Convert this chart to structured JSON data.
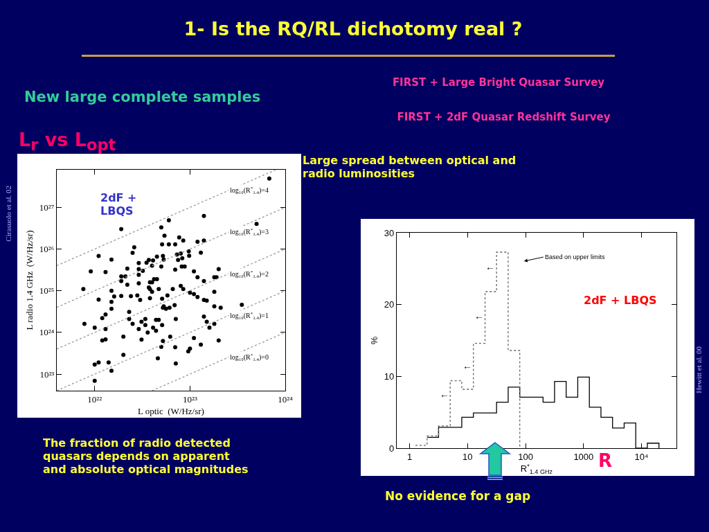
{
  "chart_data": [
    {
      "type": "other",
      "title": "1- Is the RQ/RL dichotomy real ?",
      "annotations": [
        "New large complete samples",
        "FIRST + Large Bright Quasar Survey",
        "FIRST + 2dF Quasar Redshift Survey",
        "Large spread between optical and radio luminosities",
        "The fraction of radio detected quasars depends on apparent and absolute optical magnitudes",
        "No evidence for a gap"
      ]
    },
    {
      "type": "scatter",
      "title": "L$_{r}$ vs L$_{opt}$",
      "xlabel": "L optic  (W/Hz/sr)",
      "ylabel": "L radio 1.4 GHz  (W/Hz/sr)",
      "log": "xy",
      "xlim": [
        4e+21,
        1e+24
      ],
      "ylim": [
        4e+22,
        8e+27
      ],
      "xticks": [
        {
          "value": 1e+22,
          "label": "10²²"
        },
        {
          "value": 1e+23,
          "label": "10²³"
        },
        {
          "value": 1e+24,
          "label": "10²⁴"
        }
      ],
      "yticks": [
        {
          "value": 1e+23,
          "label": "10²³"
        },
        {
          "value": 1e+24,
          "label": "10²⁴"
        },
        {
          "value": 1e+25,
          "label": "10²⁵"
        },
        {
          "value": 1e+26,
          "label": "10²⁶"
        },
        {
          "value": 1e+27,
          "label": "10²⁷"
        }
      ],
      "marker": "circle",
      "grid": false,
      "series": [
        {
          "color": "#000000",
          "x": [
            6.8e+23,
            1.4e+23,
            5e+23,
            1.9e+22,
            6e+22,
            5e+22,
            5.4e+22,
            7.7e+22,
            8.5e+22,
            1.2e+23,
            1.4e+23,
            5.1e+22,
            6e+22,
            7e+22,
            2.6e+22,
            2.5e+22,
            1.3e+23,
            9.7e+22,
            9.8e+22,
            7.3e+22,
            8e+22,
            1.1e+22,
            4.5e+22,
            5.2e+22,
            5.3e+22,
            7.5e+22,
            8.3e+22,
            1.5e+22,
            3.7e+22,
            4.1e+22,
            2.9e+22,
            3.5e+22,
            4e+22,
            5e+22,
            8.2e+22,
            8.8e+22,
            7e+22,
            2.2e+22,
            2.9e+22,
            3.2e+22,
            9.1e+21,
            1.3e+22,
            1.1e+23,
            2e+23,
            2.9e+22,
            1.9e+22,
            2.1e+22,
            1.2e+23,
            1.8e+23,
            1.9e+23,
            4.2e+22,
            4.5e+22,
            1.9e+22,
            1.4e+23,
            2.2e+22,
            2.9e+22,
            3.8e+22,
            4e+22,
            8e+22,
            7.6e+21,
            1.5e+22,
            3.7e+22,
            3.8e+22,
            4.7e+22,
            6.6e+22,
            4e+22,
            8.5e+22,
            1e+23,
            1.1e+23,
            1.8e+23,
            1.2e+23,
            1.9e+22,
            1.6e+22,
            2.4e+22,
            2.8e+22,
            3e+22,
            3.8e+22,
            5.8e+22,
            5.1e+22,
            1.1e+22,
            1.4e+23,
            1.5e+23,
            1.5e+22,
            5.3e+22,
            5.6e+22,
            6.1e+22,
            5.2e+22,
            6.9e+22,
            1.5e+22,
            1.8e+23,
            2.1e+23,
            3.5e+23,
            2.3e+22,
            1.3e+22,
            1.2e+22,
            7.8e+21,
            2.3e+22,
            3.4e+22,
            4.4e+22,
            4.7e+22,
            3.1e+22,
            5.1e+22,
            2.5e+22,
            3.4e+22,
            7.1e+22,
            1.4e+23,
            1.5e+23,
            1.8e+23,
            1.6e+23,
            1e+22,
            1.3e+22,
            2.9e+22,
            4.1e+22,
            3.6e+22,
            4.4e+22,
            2e+22,
            6.2e+22,
            1.2e+22,
            1.3e+22,
            3.1e+22,
            5.2e+22,
            1.1e+23,
            2e+23,
            1.3e+23,
            5e+22,
            7e+22,
            1e+23,
            9.6e+22,
            2e+22,
            4.6e+22,
            1.4e+22,
            1.1e+22,
            1e+22,
            7.1e+22,
            1.5e+22,
            1e+22
          ],
          "values": [
            4.9e+27,
            6.2e+26,
            4e+26,
            3e+26,
            4.9e+26,
            3.3e+26,
            2.1e+26,
            1.9e+26,
            1.6e+26,
            1.5e+26,
            1.6e+26,
            1.3e+26,
            1.3e+26,
            1.3e+26,
            1.1e+26,
            8.1e+25,
            8.2e+25,
            8.8e+25,
            6.9e+25,
            7.4e+25,
            7.8e+25,
            6.8e+25,
            6.6e+25,
            6.8e+25,
            5.6e+25,
            5.5e+25,
            6e+25,
            5.6e+25,
            5.5e+25,
            5.3e+25,
            4.6e+25,
            4.7e+25,
            4e+25,
            3.8e+25,
            3.8e+25,
            3.8e+25,
            3.2e+25,
            3.4e+25,
            3.3e+25,
            3e+25,
            2.9e+25,
            2.8e+25,
            2.9e+25,
            3.3e+25,
            2.4e+25,
            2.2e+25,
            2.2e+25,
            2.1e+25,
            2.1e+25,
            2.1e+25,
            1.9e+25,
            1.9e+25,
            1.7e+25,
            1.7e+25,
            1.4e+25,
            1.5e+25,
            1.6e+25,
            1.6e+25,
            1.3e+25,
            1.1e+25,
            1e+25,
            1.2e+25,
            1.1e+25,
            1.1e+25,
            1.1e+25,
            9.4e+24,
            1.1e+25,
            9e+24,
            8.3e+24,
            9.4e+24,
            7.1e+24,
            7.5e+24,
            7.3e+24,
            7.4e+24,
            7.7e+24,
            6e+24,
            6.6e+24,
            7.7e+24,
            6.4e+24,
            6.1e+24,
            6e+24,
            5.8e+24,
            5.4e+24,
            4.2e+24,
            3.7e+24,
            3.9e+24,
            3.9e+24,
            4.5e+24,
            3.7e+24,
            4.2e+24,
            3.9e+24,
            4.6e+24,
            3.1e+24,
            2.7e+24,
            2.2e+24,
            1.6e+24,
            2.1e+24,
            2.1e+24,
            2e+24,
            2e+24,
            1.8e+24,
            1.5e+24,
            1.6e+24,
            1.5e+24,
            2.1e+24,
            2.4e+24,
            1.8e+24,
            1.6e+24,
            1.3e+24,
            1.3e+24,
            1.2e+24,
            1.2e+24,
            1.3e+24,
            1e+24,
            1.1e+24,
            7.9e+23,
            7.9e+23,
            6.4e+23,
            6.8e+23,
            6.7e+23,
            6.2e+23,
            7.3e+23,
            6.4e+23,
            5.1e+23,
            4.5e+23,
            4.4e+23,
            4.1e+23,
            3.5e+23,
            2.9e+23,
            2.4e+23,
            1.9e+23,
            1.9e+23,
            1.7e+23,
            1.8e+23,
            1.2e+23,
            6.9e+22
          ]
        },
        {
          "type": "line",
          "name": "log₁₀(R$^{*}$$_{1.4}$)=4",
          "marker": "none",
          "line_style": "dotted",
          "color": "#999999",
          "x": [
            4e+21,
            8e+23
          ],
          "values": [
            4e+25,
            8e+27
          ]
        },
        {
          "type": "line",
          "name": "log₁₀(R$^{*}$$_{1.4}$)=3",
          "marker": "none",
          "line_style": "dotted",
          "color": "#999999",
          "x": [
            4e+21,
            1e+24
          ],
          "values": [
            4e+24,
            1e+27
          ]
        },
        {
          "type": "line",
          "name": "log₁₀(R$^{*}$$_{1.4}$)=2",
          "marker": "none",
          "line_style": "dotted",
          "color": "#999999",
          "x": [
            4e+21,
            1e+24
          ],
          "values": [
            4e+23,
            1e+26
          ]
        },
        {
          "type": "line",
          "name": "log₁₀(R$^{*}$$_{1.4}$)=1",
          "marker": "none",
          "line_style": "dotted",
          "color": "#999999",
          "x": [
            4e+21,
            1e+24
          ],
          "values": [
            4e+22,
            1e+25
          ]
        },
        {
          "type": "line",
          "name": "log₁₀(R$^{*}$$_{1.4}$)=0",
          "marker": "none",
          "line_style": "dotted",
          "color": "#999999",
          "x": [
            4e+22,
            1e+24
          ],
          "values": [
            4e+22,
            1e+24
          ]
        }
      ],
      "annotations": [
        "2dF + LBQS",
        "Cirasuolo et al. 02"
      ]
    },
    {
      "type": "step",
      "xlabel": "R$^{*}$$_{1.4 GHz}$",
      "ylabel": "%",
      "log": "x",
      "xlim": [
        0.6,
        40000
      ],
      "ylim": [
        0,
        30
      ],
      "xticks": [
        1,
        10,
        100,
        1000,
        {
          "value": 10000,
          "label": "10⁴"
        }
      ],
      "yticks": [
        0,
        10,
        20,
        30
      ],
      "grid": false,
      "series": [
        {
          "color": "#000000",
          "line_style": "solid",
          "x": [
            2,
            3.16,
            5.01,
            7.94,
            12.6,
            20,
            31.6,
            50.1,
            79.4,
            126,
            200,
            316,
            501,
            794,
            1259,
            1995,
            3162,
            5012,
            7943,
            12589,
            19953
          ],
          "values": [
            1.5,
            2.9,
            2.9,
            4.3,
            4.9,
            4.9,
            6.4,
            8.5,
            7.1,
            7.1,
            6.4,
            9.3,
            7.1,
            9.9,
            5.7,
            4.3,
            2.8,
            3.5,
            0,
            0.7,
            0
          ]
        },
        {
          "color": "#666666",
          "line_style": "dotted",
          "x": [
            1.26,
            2,
            3.16,
            5.01,
            7.94,
            12.6,
            20,
            31.6,
            50.1,
            79.4
          ],
          "values": [
            0.4,
            1.7,
            3.1,
            9.4,
            8.2,
            14.6,
            21.8,
            27.3,
            13.6,
            0
          ]
        }
      ],
      "annotations": [
        "2dF + LBQS",
        "R",
        "Hewitt et al. 00",
        "Based on upper limits",
        "←",
        "←",
        "←",
        "←"
      ]
    }
  ]
}
